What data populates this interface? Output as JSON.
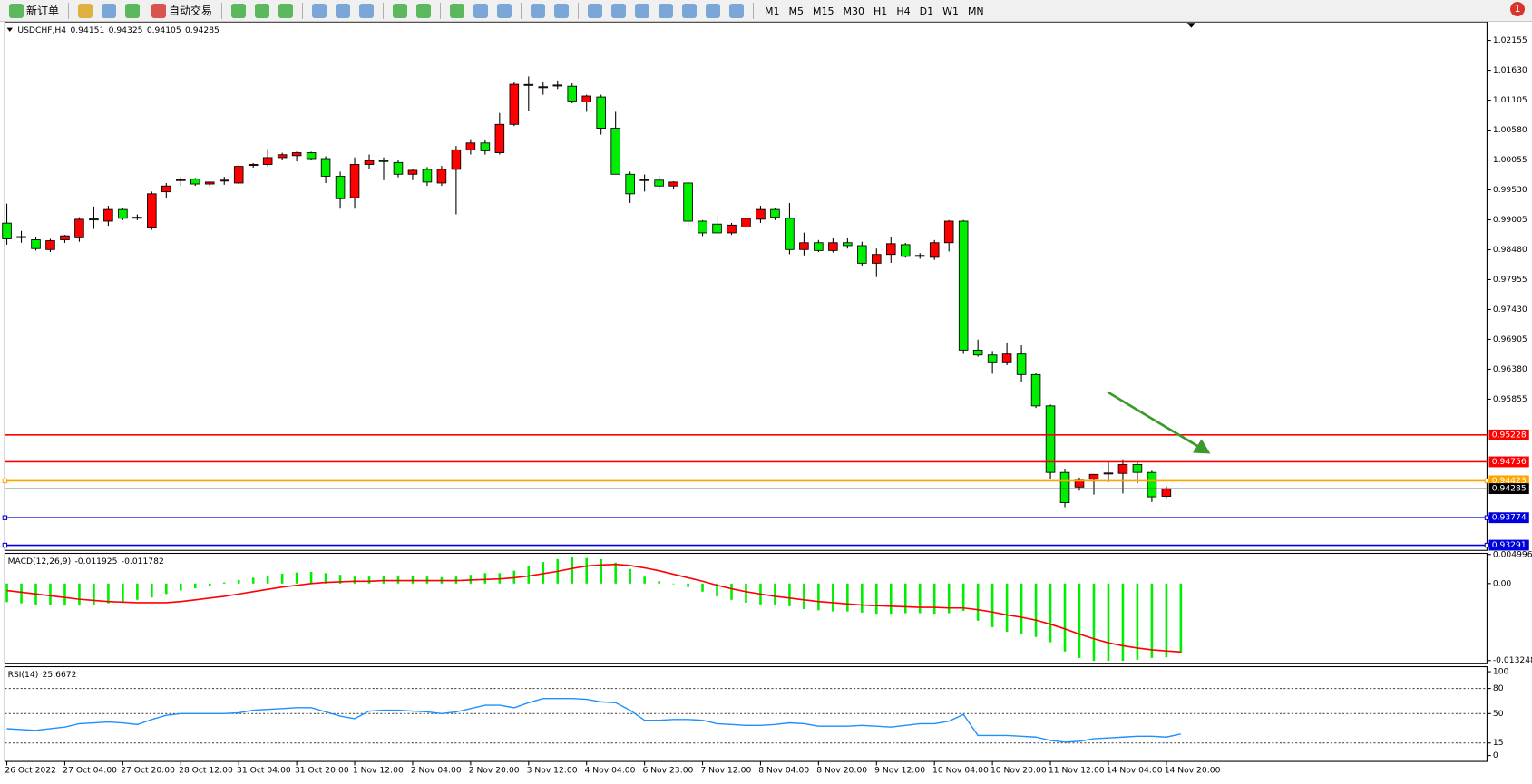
{
  "toolbar": {
    "new_order": "新订单",
    "auto_trading": "自动交易",
    "timeframes": [
      "M1",
      "M5",
      "M15",
      "M30",
      "H1",
      "H4",
      "D1",
      "W1",
      "MN"
    ],
    "badge": "1"
  },
  "chart_data": [
    {
      "type": "candlestick",
      "title": "USDCHF,H4",
      "up_color": "#ff0000",
      "down_color": "#00ee00",
      "categories": [
        "26 Oct 2022",
        null,
        null,
        null,
        "27 Oct 04:00",
        null,
        null,
        null,
        "27 Oct 20:00",
        null,
        null,
        null,
        "28 Oct 12:00",
        null,
        null,
        null,
        "31 Oct 04:00",
        null,
        null,
        null,
        "31 Oct 20:00",
        null,
        null,
        null,
        "1 Nov 12:00",
        null,
        null,
        null,
        "2 Nov 04:00",
        null,
        null,
        null,
        "2 Nov 20:00",
        null,
        null,
        null,
        "3 Nov 12:00",
        null,
        null,
        null,
        "4 Nov 04:00",
        null,
        null,
        null,
        "6 Nov 23:00",
        null,
        null,
        null,
        "7 Nov 12:00",
        null,
        null,
        null,
        "8 Nov 04:00",
        null,
        null,
        null,
        "8 Nov 20:00",
        null,
        null,
        null,
        "9 Nov 12:00",
        null,
        null,
        null,
        "10 Nov 04:00",
        null,
        null,
        null,
        "10 Nov 20:00",
        null,
        null,
        null,
        "11 Nov 12:00",
        null,
        null,
        null,
        "14 Nov 04:00",
        null,
        null,
        null,
        "14 Nov 20:00"
      ],
      "open": [
        0.98947,
        0.9871,
        0.98655,
        0.98483,
        0.98655,
        0.98689,
        0.9902,
        0.98981,
        0.99186,
        0.9905,
        0.98861,
        0.99496,
        0.997,
        0.99718,
        0.99633,
        0.9969,
        0.9965,
        0.9996,
        0.99976,
        1.00096,
        1.0013,
        1.00182,
        1.00079,
        0.9977,
        0.99392,
        0.99976,
        1.00044,
        1.0001,
        0.99804,
        0.9989,
        0.9965,
        0.9989,
        1.00233,
        1.00353,
        1.00182,
        1.00679,
        1.01366,
        1.01332,
        1.01366,
        1.01349,
        1.01074,
        1.0116,
        1.00611,
        0.99804,
        0.99701,
        0.99701,
        0.99598,
        0.9965,
        0.98981,
        0.9893,
        0.98775,
        0.98878,
        0.99015,
        0.99186,
        0.99032,
        0.98483,
        0.98603,
        0.98466,
        0.98603,
        0.98552,
        0.98243,
        0.98397,
        0.98569,
        0.9837,
        0.98346,
        0.98603,
        0.98981,
        0.96715,
        0.9663,
        0.96509,
        0.96647,
        0.96286,
        0.95737,
        0.9457,
        0.94313,
        0.9445,
        0.94553,
        0.94553,
        0.94708,
        0.9457,
        0.94151
      ],
      "high": [
        0.99289,
        0.9881,
        0.98706,
        0.98672,
        0.9874,
        0.9905,
        0.99238,
        0.9925,
        0.9922,
        0.991,
        0.995,
        0.9965,
        0.9976,
        0.9974,
        0.9968,
        0.9976,
        0.9996,
        1.0,
        1.0025,
        1.0018,
        1.002,
        1.002,
        1.0012,
        0.9985,
        1.001,
        1.0015,
        1.001,
        1.0005,
        0.999,
        0.9993,
        0.9995,
        1.003,
        1.0042,
        1.004,
        1.0088,
        1.0142,
        1.0152,
        1.0142,
        1.0145,
        1.014,
        1.012,
        1.012,
        1.009,
        0.9985,
        0.998,
        0.9978,
        0.9968,
        0.9968,
        0.99,
        0.991,
        0.9895,
        0.991,
        0.9925,
        0.9922,
        0.993,
        0.9878,
        0.9865,
        0.9868,
        0.9868,
        0.9862,
        0.985,
        0.987,
        0.986,
        0.9842,
        0.9865,
        0.99,
        0.99,
        0.969,
        0.967,
        0.9685,
        0.968,
        0.9632,
        0.9576,
        0.9462,
        0.9448,
        0.9454,
        0.9475,
        0.948,
        0.9475,
        0.946,
        0.94325
      ],
      "low": [
        0.98569,
        0.98603,
        0.98466,
        0.9844,
        0.986,
        0.9862,
        0.98844,
        0.989,
        0.99,
        0.99,
        0.9883,
        0.9938,
        0.996,
        0.996,
        0.996,
        0.9962,
        0.9963,
        0.9992,
        0.9994,
        1.0006,
        1.0003,
        1.0006,
        0.9965,
        0.992,
        0.992,
        0.999,
        0.997,
        0.9975,
        0.997,
        0.996,
        0.996,
        0.991,
        1.0015,
        1.0015,
        1.0015,
        1.0065,
        1.0092,
        1.012,
        1.013,
        1.0105,
        1.009,
        1.005,
        0.998,
        0.993,
        0.995,
        0.9955,
        0.9955,
        0.989,
        0.9872,
        0.9875,
        0.9874,
        0.988,
        0.9895,
        0.99,
        0.984,
        0.9838,
        0.9844,
        0.9843,
        0.985,
        0.982,
        0.98,
        0.9825,
        0.9834,
        0.9832,
        0.983,
        0.9845,
        0.9665,
        0.966,
        0.963,
        0.9645,
        0.9615,
        0.957,
        0.9445,
        0.9396,
        0.9425,
        0.9418,
        0.944,
        0.942,
        0.9438,
        0.9405,
        0.94105
      ],
      "close": [
        0.98672,
        0.987,
        0.985,
        0.98638,
        0.98724,
        0.99015,
        0.9901,
        0.99186,
        0.99032,
        0.9904,
        0.99461,
        0.99598,
        0.9971,
        0.99633,
        0.99667,
        0.99701,
        0.99942,
        0.99976,
        1.00096,
        1.00147,
        1.00182,
        1.00079,
        0.9977,
        0.99375,
        0.99976,
        1.00044,
        1.0004,
        0.99804,
        0.99873,
        0.99667,
        0.9989,
        1.00233,
        1.00353,
        1.00216,
        1.00679,
        1.01383,
        1.0138,
        1.0134,
        1.0137,
        1.01091,
        1.01177,
        1.00611,
        0.99804,
        0.99461,
        0.9971,
        0.99598,
        0.99667,
        0.98981,
        0.98775,
        0.98775,
        0.98912,
        0.99032,
        0.99186,
        0.99049,
        0.98483,
        0.98603,
        0.98466,
        0.98603,
        0.98552,
        0.98243,
        0.98397,
        0.98586,
        0.98363,
        0.9838,
        0.98603,
        0.98981,
        0.96715,
        0.9663,
        0.96509,
        0.96647,
        0.96286,
        0.95737,
        0.9457,
        0.94038,
        0.94433,
        0.94536,
        0.9456,
        0.94708,
        0.9457,
        0.94142,
        0.94285
      ],
      "ylim": [
        0.932,
        1.0248
      ],
      "yticks": [
        1.02155,
        {
          "value": 1.0163,
          "label": "1.01630"
        },
        1.01105,
        {
          "value": 1.0058,
          "label": "1.00580"
        },
        1.00055,
        {
          "value": 0.9953,
          "label": "0.99530"
        },
        0.99005,
        {
          "value": 0.9848,
          "label": "0.98480"
        },
        0.97955,
        {
          "value": 0.9743,
          "label": "0.97430"
        },
        0.96905,
        {
          "value": 0.9638,
          "label": "0.96380"
        },
        0.95855
      ],
      "levels": [
        {
          "value": 0.95228,
          "color": "#ff0000"
        },
        {
          "value": 0.94756,
          "color": "#ff0000"
        },
        {
          "value": 0.94423,
          "color": "#ffa500"
        },
        {
          "value": 0.93774,
          "color": "#0000dd"
        },
        {
          "value": 0.93291,
          "color": "#0000dd"
        }
      ]
    },
    {
      "type": "combo",
      "title": "MACD(12,26,9)",
      "ylim": [
        -0.0138,
        0.0052
      ],
      "yticks": [
        0.004996,
        {
          "value": 0,
          "label": "0.00"
        },
        -0.013248
      ],
      "series": [
        {
          "name": "MACD",
          "kind": "bar",
          "color": "#00ee00",
          "values": [
            -0.0032,
            -0.0034,
            -0.0036,
            -0.0037,
            -0.0038,
            -0.0038,
            -0.0036,
            -0.0034,
            -0.0031,
            -0.0028,
            -0.0024,
            -0.0018,
            -0.0012,
            -0.0008,
            -0.0004,
            0.0002,
            0.0006,
            0.001,
            0.0014,
            0.0017,
            0.0019,
            0.002,
            0.0018,
            0.0015,
            0.0012,
            0.0012,
            0.0013,
            0.0014,
            0.0013,
            0.0012,
            0.0011,
            0.0012,
            0.0015,
            0.0018,
            0.0018,
            0.0022,
            0.003,
            0.0037,
            0.0042,
            0.0045,
            0.0044,
            0.0042,
            0.0036,
            0.0025,
            0.0012,
            0.0004,
            -0.0001,
            -0.0006,
            -0.0014,
            -0.0022,
            -0.0028,
            -0.0033,
            -0.0036,
            -0.0037,
            -0.0039,
            -0.0044,
            -0.0046,
            -0.0048,
            -0.0048,
            -0.005,
            -0.0052,
            -0.0052,
            -0.0051,
            -0.0051,
            -0.0052,
            -0.0051,
            -0.0047,
            -0.0064,
            -0.0075,
            -0.0083,
            -0.0086,
            -0.0092,
            -0.0101,
            -0.0117,
            -0.0128,
            -0.0133,
            -0.0133,
            -0.0133,
            -0.0131,
            -0.0128,
            -0.0127,
            -0.011925
          ]
        },
        {
          "name": "Signal",
          "kind": "line",
          "color": "#ff0000",
          "values": [
            -0.0012,
            -0.0015,
            -0.0018,
            -0.0021,
            -0.0024,
            -0.0027,
            -0.0029,
            -0.0031,
            -0.0032,
            -0.0033,
            -0.0033,
            -0.0033,
            -0.0031,
            -0.0028,
            -0.0025,
            -0.0022,
            -0.0018,
            -0.0014,
            -0.001,
            -0.0006,
            -0.0003,
            0,
            0.0002,
            0.0003,
            0.0004,
            0.0004,
            0.0005,
            0.0005,
            0.0005,
            0.0005,
            0.0005,
            0.0005,
            0.0006,
            0.0007,
            0.0008,
            0.001,
            0.0013,
            0.0017,
            0.0021,
            0.0026,
            0.003,
            0.0032,
            0.0033,
            0.0031,
            0.0027,
            0.0022,
            0.0016,
            0.001,
            0.0004,
            -0.0003,
            -0.0009,
            -0.0014,
            -0.0018,
            -0.0022,
            -0.0025,
            -0.0028,
            -0.0031,
            -0.0033,
            -0.0035,
            -0.0037,
            -0.0038,
            -0.0039,
            -0.004,
            -0.0041,
            -0.0041,
            -0.0042,
            -0.0042,
            -0.0045,
            -0.0049,
            -0.0054,
            -0.0058,
            -0.0063,
            -0.007,
            -0.0078,
            -0.0087,
            -0.0095,
            -0.0102,
            -0.0107,
            -0.0111,
            -0.0114,
            -0.0116,
            -0.011782
          ]
        }
      ]
    },
    {
      "type": "line",
      "title": "RSI(14)",
      "color": "#1e90ff",
      "ylim": [
        -7,
        106
      ],
      "yticks": [
        100,
        80,
        50,
        15,
        0
      ],
      "levels": [
        80,
        50,
        15
      ],
      "values": [
        32,
        31,
        30,
        32,
        34,
        38,
        39,
        40,
        39,
        37,
        43,
        48,
        50,
        50,
        50,
        50,
        51,
        54,
        55,
        56,
        57,
        57,
        52,
        47,
        44,
        53,
        54,
        54,
        53,
        52,
        50,
        52,
        56,
        60,
        60,
        57,
        63,
        68,
        68,
        68,
        67,
        64,
        63,
        54,
        42,
        42,
        43,
        43,
        42,
        38,
        37,
        36,
        36,
        37,
        39,
        38,
        35,
        35,
        35,
        36,
        35,
        34,
        36,
        38,
        38,
        41,
        49,
        24,
        24,
        24,
        23,
        22,
        18,
        16,
        17,
        20,
        21,
        22,
        23,
        23,
        22,
        25.6672
      ]
    }
  ]
}
